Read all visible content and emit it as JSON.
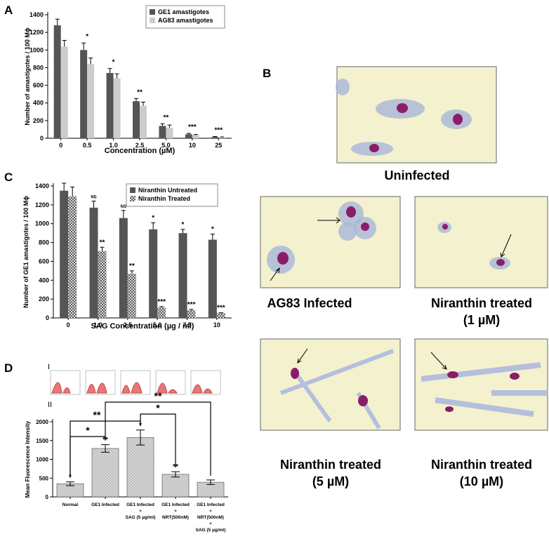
{
  "panel_labels": [
    "A",
    "B",
    "C",
    "D"
  ],
  "subpanel_labels": [
    "I",
    "II"
  ],
  "micrographs": [
    {
      "caption": [
        "Uninfected"
      ]
    },
    {
      "caption": [
        "AG83 Infected"
      ]
    },
    {
      "caption": [
        "Niranthin treated",
        "(1 µM)"
      ]
    },
    {
      "caption": [
        "Niranthin treated",
        "(5 µM)"
      ]
    },
    {
      "caption": [
        "Niranthin treated",
        "(10 µM)"
      ]
    }
  ],
  "chart_data": [
    {
      "type": "bar",
      "xlabel": "Concentration (µM)",
      "ylabel": "Number of amastigotes / 100 Mϕ",
      "categories": [
        "0",
        "0.5",
        "1.0",
        "2.5",
        "5.0",
        "10",
        "25"
      ],
      "series": [
        {
          "name": "GE1 amastigotes",
          "color": "#555555",
          "values": [
            1280,
            1000,
            740,
            420,
            140,
            45,
            15
          ],
          "errors": [
            70,
            80,
            50,
            30,
            25,
            10,
            5
          ]
        },
        {
          "name": "AG83 amastigotes",
          "color": "#cccccc",
          "values": [
            1040,
            840,
            680,
            370,
            120,
            35,
            10
          ],
          "errors": [
            70,
            70,
            50,
            40,
            30,
            8,
            5
          ]
        }
      ],
      "annotations": [
        null,
        "*",
        "*",
        "**",
        "**",
        "***",
        "***"
      ],
      "ylim": [
        0,
        1400
      ],
      "yticks": [
        0,
        200,
        400,
        600,
        800,
        1000,
        1200,
        1400
      ],
      "legend": "upper right"
    },
    {
      "type": "bar",
      "xlabel": "SAG Concentration (µg / ml)",
      "ylabel": "Number of  GE1 amastigotes / 100 Mϕ",
      "categories": [
        "0",
        "1.0",
        "2.5",
        "5.0",
        "7.5",
        "10"
      ],
      "series": [
        {
          "name": "Niranthin Untreated",
          "color": "#555555",
          "values": [
            1350,
            1170,
            1060,
            940,
            900,
            830
          ],
          "errors": [
            80,
            70,
            80,
            70,
            40,
            60
          ],
          "annotations": [
            null,
            "NS",
            "NS",
            "*",
            "*",
            "*"
          ]
        },
        {
          "name": "Niranthin Treated",
          "color": "#444444",
          "hatch": "crosshatch",
          "values": [
            1290,
            710,
            470,
            110,
            80,
            50
          ],
          "errors": [
            100,
            40,
            30,
            10,
            10,
            5
          ],
          "annotations": [
            null,
            "**",
            "**",
            "***",
            "***",
            "***"
          ]
        }
      ],
      "ylim": [
        0,
        1400
      ],
      "yticks": [
        0,
        200,
        400,
        600,
        800,
        1000,
        1200,
        1400
      ],
      "legend": "upper right"
    },
    {
      "type": "bar",
      "ylabel": "Mean Fluorescence Intensity",
      "categories": [
        [
          "Normal"
        ],
        [
          "GE1 Infected"
        ],
        [
          "GE1 Infected",
          "+",
          "SAG (5 µg/ml)"
        ],
        [
          "GE1 Infected",
          "+",
          "NRT(500nM)"
        ],
        [
          "GE1 Infected",
          "+",
          "NRT(500nM)",
          "+",
          "SAG (5 µg/ml)"
        ]
      ],
      "values": [
        350,
        1290,
        1580,
        600,
        390
      ],
      "errors": [
        50,
        100,
        200,
        70,
        60
      ],
      "color": "#999999",
      "hatch": "dots",
      "annotations": [
        "*",
        "**",
        "*",
        "**"
      ],
      "ylim": [
        0,
        2000
      ],
      "yticks": [
        0,
        500,
        1000,
        1500,
        2000
      ]
    }
  ]
}
